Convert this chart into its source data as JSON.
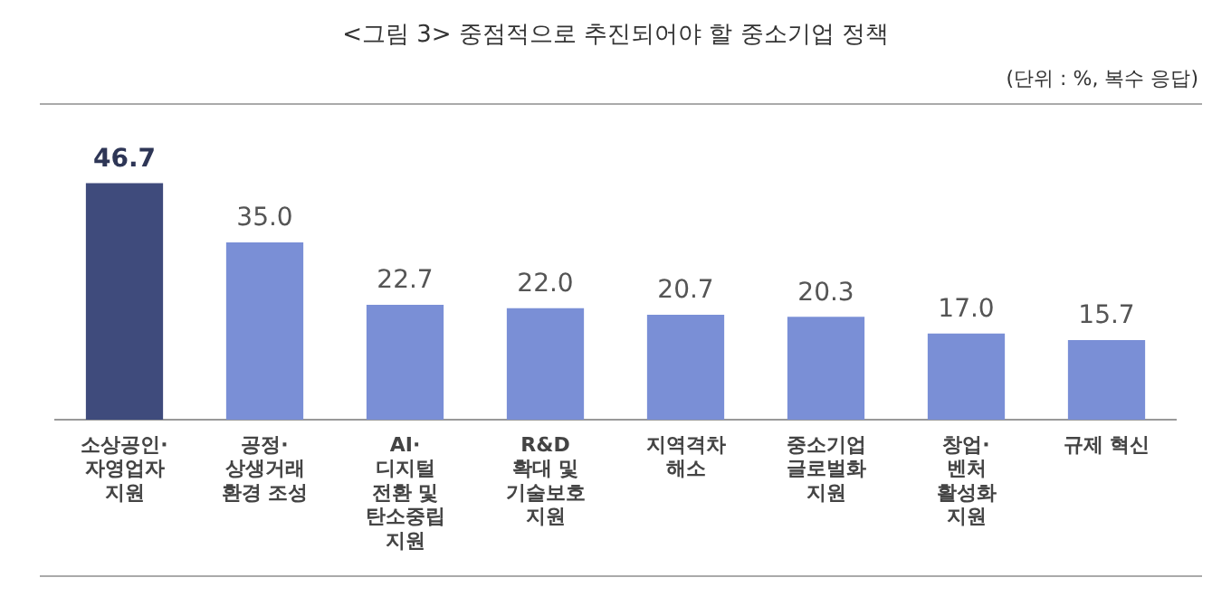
{
  "chart_data": {
    "type": "bar",
    "title": "<그림 3> 중점적으로 추진되어야 할 중소기업 정책",
    "subtitle": "(단위 : %, 복수 응답)",
    "categories": [
      "소상공인·\n자영업자\n지원",
      "공정·\n상생거래\n환경 조성",
      "AI·\n디지털\n전환 및\n탄소중립\n지원",
      "R&D\n확대 및\n기술보호\n지원",
      "지역격차\n해소",
      "중소기업\n글로벌화\n지원",
      "창업·\n벤처\n활성화\n지원",
      "규제 혁신"
    ],
    "values": [
      46.7,
      35.0,
      22.7,
      22.0,
      20.7,
      20.3,
      17.0,
      15.7
    ],
    "colors": [
      "#3f4b7c",
      "#7a8fd6",
      "#7a8fd6",
      "#7a8fd6",
      "#7a8fd6",
      "#7a8fd6",
      "#7a8fd6",
      "#7a8fd6"
    ],
    "value_labels": [
      "46.7",
      "35.0",
      "22.7",
      "22.0",
      "20.7",
      "20.3",
      "17.0",
      "15.7"
    ],
    "grid": false,
    "legend": false
  }
}
